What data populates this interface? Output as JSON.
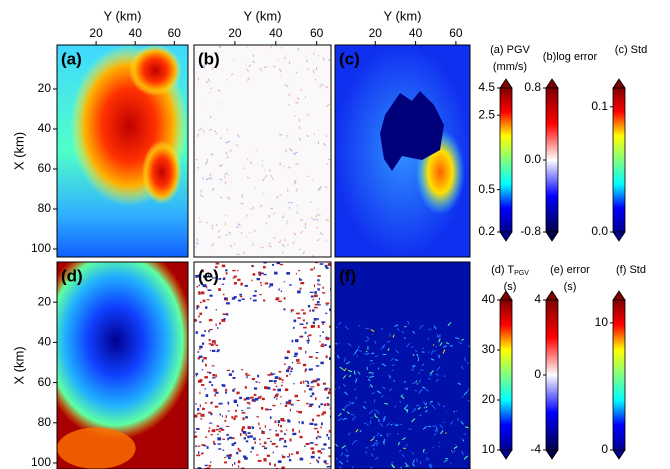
{
  "chart_data": [
    {
      "type": "heatmap",
      "label": "(a)",
      "xlabel": "Y (km)",
      "ylabel": "X (km)",
      "xlim": [
        0,
        67
      ],
      "xticks": [
        20,
        40,
        60
      ],
      "ylim": [
        -2,
        104
      ],
      "yticks": [
        20,
        40,
        60,
        80,
        100
      ],
      "colorbar": {
        "label": "(a) PGV",
        "unit": "(mm/s)",
        "colormap": "jet",
        "scale": "log",
        "lim": [
          0.2,
          4.5
        ],
        "ticks": [
          0.2,
          0.5,
          2.5,
          4.5
        ]
      }
    },
    {
      "type": "heatmap",
      "label": "(b)",
      "xlabel": "Y (km)",
      "xlim": [
        0,
        67
      ],
      "xticks": [
        20,
        40,
        60
      ],
      "ylim": [
        -2,
        104
      ],
      "colorbar": {
        "label": "(b)log error",
        "colormap": "seismic",
        "scale": "linear",
        "lim": [
          -0.8,
          0.8
        ],
        "ticks": [
          -0.8,
          {
            "value": 0,
            "label": "0.0"
          },
          0.8
        ]
      }
    },
    {
      "type": "heatmap",
      "label": "(c)",
      "xlabel": "Y (km)",
      "xlim": [
        0,
        67
      ],
      "xticks": [
        20,
        40,
        60
      ],
      "ylim": [
        -2,
        104
      ],
      "colorbar": {
        "label": "(c) Std",
        "colormap": "jet",
        "scale": "linear",
        "lim": [
          0,
          0.115
        ],
        "ticks": [
          {
            "value": 0,
            "label": "0.0"
          },
          0.1
        ]
      }
    },
    {
      "type": "heatmap",
      "label": "(d)",
      "ylabel": "X (km)",
      "xlim": [
        0,
        67
      ],
      "ylim": [
        0,
        103
      ],
      "yticks": [
        20,
        40,
        60,
        80,
        100
      ],
      "colorbar": {
        "label": "(d) T",
        "label_sub": "PGV",
        "unit": "(s)",
        "colormap": "jet",
        "scale": "linear",
        "lim": [
          10,
          40
        ],
        "ticks": [
          10,
          20,
          30,
          40
        ]
      }
    },
    {
      "type": "heatmap",
      "label": "(e)",
      "xlim": [
        0,
        67
      ],
      "ylim": [
        0,
        103
      ],
      "colorbar": {
        "label": "(e) error",
        "unit": "(s)",
        "colormap": "seismic",
        "scale": "linear",
        "lim": [
          -4,
          4
        ],
        "ticks": [
          -4,
          0,
          4
        ]
      }
    },
    {
      "type": "heatmap",
      "label": "(f)",
      "xlim": [
        0,
        67
      ],
      "ylim": [
        0,
        103
      ],
      "colorbar": {
        "label": "(f) Std",
        "colormap": "jet",
        "scale": "linear",
        "lim": [
          0,
          11.8
        ],
        "ticks": [
          0,
          10
        ]
      }
    }
  ]
}
